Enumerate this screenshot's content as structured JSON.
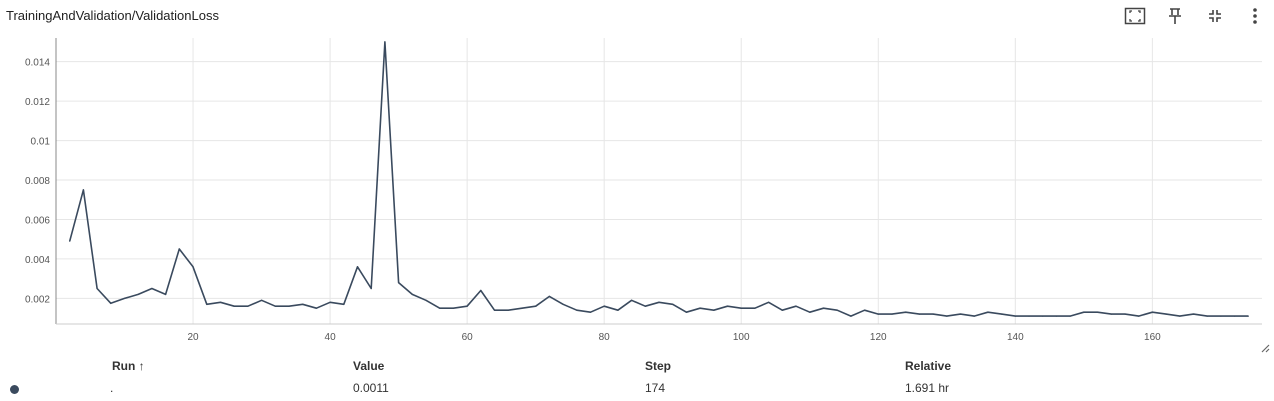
{
  "card": {
    "title": "TrainingAndValidation/ValidationLoss"
  },
  "toolbar": {
    "icons": [
      "fit-to-domain-icon",
      "pin-icon",
      "collapse-icon",
      "more-menu-icon"
    ]
  },
  "colors": {
    "line": "#3a4a5e",
    "grid": "#e6e6e6",
    "axis": "#888888",
    "tick_text": "#555555"
  },
  "chart_data": {
    "type": "line",
    "title": "",
    "xlabel": "",
    "ylabel": "",
    "xlim": [
      0,
      176
    ],
    "ylim": [
      0.0007,
      0.0152
    ],
    "x_ticks": [
      20,
      40,
      60,
      80,
      100,
      120,
      140,
      160
    ],
    "y_ticks": [
      0.002,
      0.004,
      0.006,
      0.008,
      0.01,
      0.012,
      0.014
    ],
    "y_tick_labels": [
      "0.002",
      "0.004",
      "0.006",
      "0.008",
      "0.01",
      "0.012",
      "0.014"
    ],
    "grid": true,
    "series": [
      {
        "x": [
          2,
          4,
          6,
          8,
          10,
          12,
          14,
          16,
          18,
          20,
          22,
          24,
          26,
          28,
          30,
          32,
          34,
          36,
          38,
          40,
          42,
          44,
          46,
          48,
          50,
          52,
          54,
          56,
          58,
          60,
          62,
          64,
          66,
          68,
          70,
          72,
          74,
          76,
          78,
          80,
          82,
          84,
          86,
          88,
          90,
          92,
          94,
          96,
          98,
          100,
          102,
          104,
          106,
          108,
          110,
          112,
          114,
          116,
          118,
          120,
          122,
          124,
          126,
          128,
          130,
          132,
          134,
          136,
          138,
          140,
          142,
          144,
          146,
          148,
          150,
          152,
          154,
          156,
          158,
          160,
          162,
          164,
          166,
          168,
          170,
          172,
          174
        ],
        "y": [
          0.0049,
          0.0075,
          0.0025,
          0.00175,
          0.002,
          0.0022,
          0.0025,
          0.0022,
          0.0045,
          0.0036,
          0.0017,
          0.0018,
          0.0016,
          0.0016,
          0.0019,
          0.0016,
          0.0016,
          0.0017,
          0.0015,
          0.0018,
          0.0017,
          0.0036,
          0.0025,
          0.015,
          0.0028,
          0.0022,
          0.0019,
          0.0015,
          0.0015,
          0.0016,
          0.0024,
          0.0014,
          0.0014,
          0.0015,
          0.0016,
          0.0021,
          0.0017,
          0.0014,
          0.0013,
          0.0016,
          0.0014,
          0.0019,
          0.0016,
          0.0018,
          0.0017,
          0.0013,
          0.0015,
          0.0014,
          0.0016,
          0.0015,
          0.0015,
          0.0018,
          0.0014,
          0.0016,
          0.0013,
          0.0015,
          0.0014,
          0.0011,
          0.0014,
          0.0012,
          0.0012,
          0.0013,
          0.0012,
          0.0012,
          0.0011,
          0.0012,
          0.0011,
          0.0013,
          0.0012,
          0.0011,
          0.0011,
          0.0011,
          0.0011,
          0.0011,
          0.0013,
          0.0013,
          0.0012,
          0.0012,
          0.0011,
          0.0013,
          0.0012,
          0.0011,
          0.0012,
          0.0011,
          0.0011,
          0.0011,
          0.0011
        ]
      }
    ]
  },
  "table": {
    "headers": {
      "run": "Run ↑",
      "value": "Value",
      "step": "Step",
      "relative": "Relative"
    },
    "rows": [
      {
        "run": ".",
        "value": "0.0011",
        "step": "174",
        "relative": "1.691 hr",
        "color": "#3a4a5e"
      }
    ]
  }
}
